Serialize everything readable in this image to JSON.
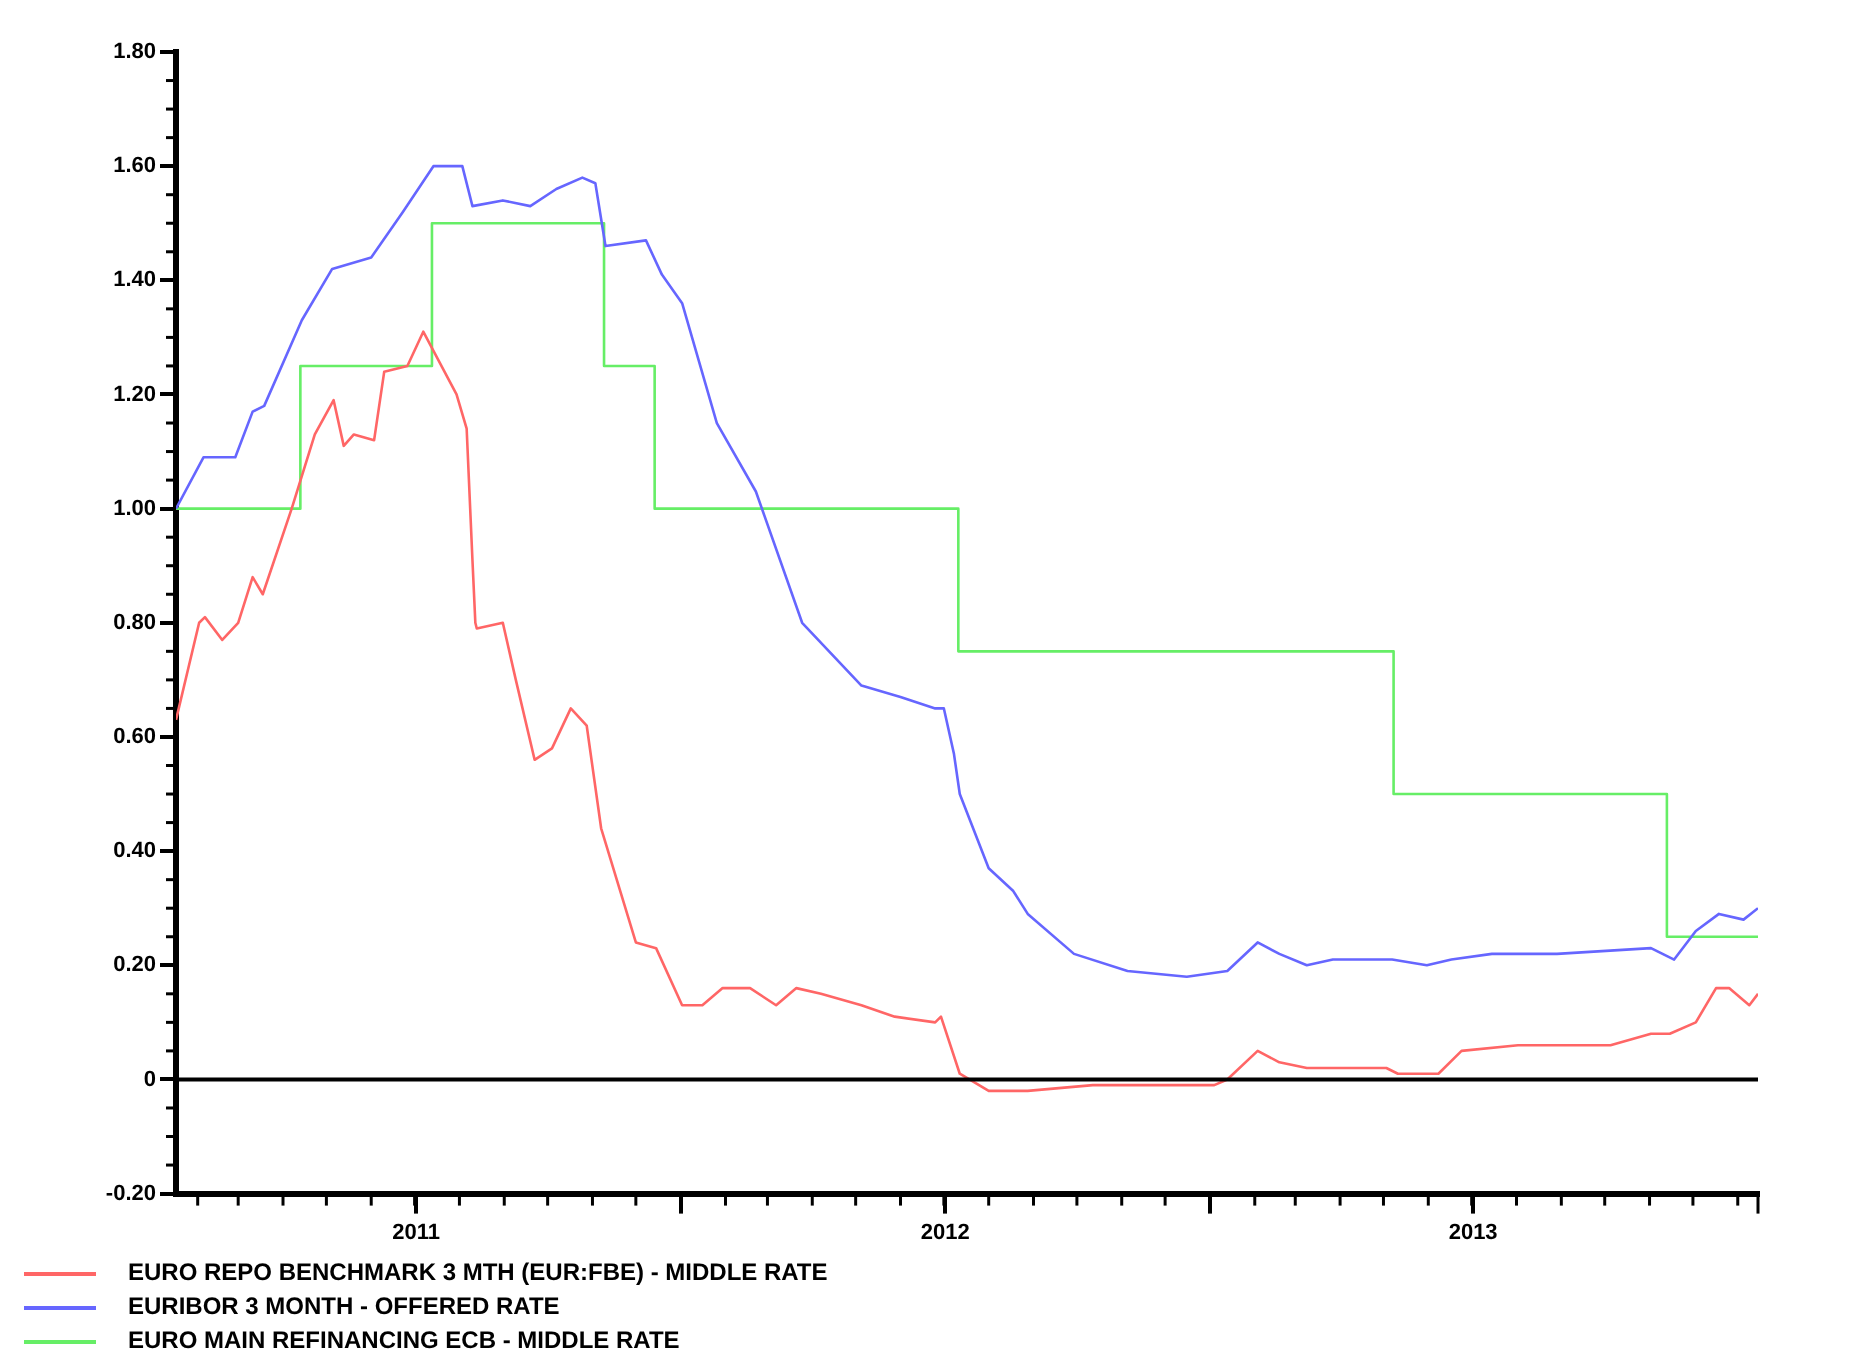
{
  "chart_data": {
    "type": "line",
    "xlim": [
      "2011-01-17",
      "2014-01-15"
    ],
    "xticks": [
      {
        "value": "2011-07-02",
        "label": "2011"
      },
      {
        "value": "2012-01-01",
        "label": null
      },
      {
        "value": "2012-07-02",
        "label": "2012"
      },
      {
        "value": "2013-01-01",
        "label": null
      },
      {
        "value": "2013-07-02",
        "label": "2013"
      }
    ],
    "ylim": [
      -0.2,
      1.8
    ],
    "yticks": [
      {
        "value": -0.2,
        "label": "-0.20"
      },
      {
        "value": 0,
        "label": "0"
      },
      {
        "value": 0.2,
        "label": "0.20"
      },
      {
        "value": 0.4,
        "label": "0.40"
      },
      {
        "value": 0.6,
        "label": "0.60"
      },
      {
        "value": 0.8,
        "label": "0.80"
      },
      {
        "value": 1.0,
        "label": "1.00"
      },
      {
        "value": 1.2,
        "label": "1.20"
      },
      {
        "value": 1.4,
        "label": "1.40"
      },
      {
        "value": 1.6,
        "label": "1.60"
      },
      {
        "value": 1.8,
        "label": "1.80"
      }
    ],
    "grid": false,
    "legend": "bottom left",
    "marker": "none",
    "line_style": "solid",
    "ref_lines": [
      {
        "axis": "y",
        "value": 0,
        "color": "#000000"
      }
    ],
    "series": [
      {
        "name": "EURO REPO BENCHMARK 3 MTH (EUR:FBE) - MIDDLE RATE",
        "color": "#ff6666",
        "type": "line",
        "x": [
          "2011-01-17",
          "2011-02-02",
          "2011-02-06",
          "2011-02-18",
          "2011-03-01",
          "2011-03-11",
          "2011-03-18",
          "2011-04-07",
          "2011-04-23",
          "2011-05-06",
          "2011-05-13",
          "2011-05-20",
          "2011-06-03",
          "2011-06-10",
          "2011-06-26",
          "2011-07-07",
          "2011-07-30",
          "2011-08-06",
          "2011-08-10",
          "2011-08-12",
          "2011-08-13",
          "2011-08-31",
          "2011-09-09",
          "2011-09-22",
          "2011-10-04",
          "2011-10-17",
          "2011-10-28",
          "2011-11-07",
          "2011-12-01",
          "2011-12-15",
          "2012-01-02",
          "2012-01-16",
          "2012-01-30",
          "2012-02-18",
          "2012-03-07",
          "2012-03-21",
          "2012-04-07",
          "2012-05-05",
          "2012-05-28",
          "2012-06-25",
          "2012-06-29",
          "2012-07-12",
          "2012-08-01",
          "2012-08-28",
          "2012-10-12",
          "2013-01-04",
          "2013-01-13",
          "2013-02-03",
          "2013-02-18",
          "2013-03-09",
          "2013-05-03",
          "2013-05-11",
          "2013-06-08",
          "2013-06-24",
          "2013-08-02",
          "2013-10-05",
          "2013-11-02",
          "2013-11-15",
          "2013-12-03",
          "2013-12-17",
          "2013-12-26",
          "2014-01-09",
          "2014-01-15"
        ],
        "values": [
          0.63,
          0.8,
          0.81,
          0.77,
          0.8,
          0.88,
          0.85,
          1.0,
          1.13,
          1.19,
          1.11,
          1.13,
          1.12,
          1.24,
          1.25,
          1.31,
          1.2,
          1.14,
          0.91,
          0.8,
          0.79,
          0.8,
          0.7,
          0.56,
          0.58,
          0.65,
          0.62,
          0.44,
          0.24,
          0.23,
          0.13,
          0.13,
          0.16,
          0.16,
          0.13,
          0.16,
          0.15,
          0.13,
          0.11,
          0.1,
          0.11,
          0.01,
          -0.02,
          -0.02,
          -0.01,
          -0.01,
          0.0,
          0.05,
          0.03,
          0.02,
          0.02,
          0.01,
          0.01,
          0.05,
          0.06,
          0.06,
          0.08,
          0.08,
          0.1,
          0.16,
          0.16,
          0.13,
          0.15
        ]
      },
      {
        "name": "EURIBOR 3 MONTH - OFFERED RATE",
        "color": "#6666ff",
        "type": "line",
        "x": [
          "2011-01-17",
          "2011-02-05",
          "2011-02-27",
          "2011-03-11",
          "2011-03-19",
          "2011-04-14",
          "2011-05-05",
          "2011-06-01",
          "2011-06-23",
          "2011-07-14",
          "2011-08-03",
          "2011-08-10",
          "2011-08-31",
          "2011-09-19",
          "2011-10-07",
          "2011-10-25",
          "2011-11-03",
          "2011-11-10",
          "2011-12-08",
          "2011-12-19",
          "2012-01-02",
          "2012-01-26",
          "2012-02-22",
          "2012-03-25",
          "2012-05-05",
          "2012-06-01",
          "2012-06-25",
          "2012-07-01",
          "2012-07-08",
          "2012-07-12",
          "2012-08-01",
          "2012-08-18",
          "2012-08-28",
          "2012-09-29",
          "2012-11-05",
          "2012-12-16",
          "2013-01-13",
          "2013-02-03",
          "2013-02-18",
          "2013-03-09",
          "2013-03-27",
          "2013-05-07",
          "2013-05-31",
          "2013-06-17",
          "2013-07-15",
          "2013-08-29",
          "2013-11-02",
          "2013-11-18",
          "2013-12-03",
          "2013-12-19",
          "2014-01-05",
          "2014-01-15"
        ],
        "values": [
          1.0,
          1.09,
          1.09,
          1.17,
          1.18,
          1.33,
          1.42,
          1.44,
          1.52,
          1.6,
          1.6,
          1.53,
          1.54,
          1.53,
          1.56,
          1.58,
          1.57,
          1.46,
          1.47,
          1.41,
          1.36,
          1.15,
          1.03,
          0.8,
          0.69,
          0.67,
          0.65,
          0.65,
          0.57,
          0.5,
          0.37,
          0.33,
          0.29,
          0.22,
          0.19,
          0.18,
          0.19,
          0.24,
          0.22,
          0.2,
          0.21,
          0.21,
          0.2,
          0.21,
          0.22,
          0.22,
          0.23,
          0.21,
          0.26,
          0.29,
          0.28,
          0.3
        ]
      },
      {
        "name": "EURO MAIN REFINANCING ECB - MIDDLE RATE",
        "color": "#66ee66",
        "type": "step",
        "x": [
          "2011-01-17",
          "2011-04-13",
          "2011-07-13",
          "2011-11-09",
          "2011-12-14",
          "2012-07-11",
          "2013-05-08",
          "2013-11-13",
          "2014-01-15"
        ],
        "values": [
          1.0,
          1.25,
          1.5,
          1.25,
          1.0,
          0.75,
          0.5,
          0.25,
          0.25
        ]
      }
    ]
  }
}
